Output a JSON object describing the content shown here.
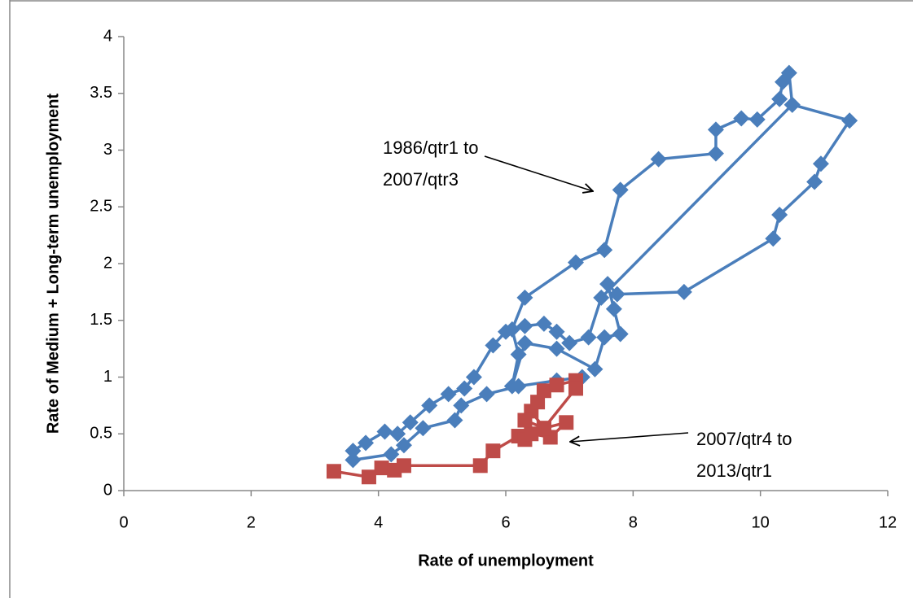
{
  "chart_data": {
    "type": "line",
    "xlabel": "Rate of unemployment",
    "ylabel": "Rate of Medium + Long-term unemployment",
    "xlim": [
      0,
      12
    ],
    "xticks": [
      0,
      2,
      4,
      6,
      8,
      10,
      12
    ],
    "ylim": [
      0,
      4
    ],
    "yticks": [
      0,
      0.5,
      1,
      1.5,
      2,
      2.5,
      3,
      3.5,
      4
    ],
    "grid": false,
    "annotations": [
      {
        "lines": [
          "1986/qtr1 to",
          "2007/qtr3"
        ]
      },
      {
        "lines": [
          "2007/qtr4 to",
          "2013/qtr1"
        ]
      }
    ],
    "series": [
      {
        "color": "#4a7ebb",
        "marker": "diamond",
        "x": [
          10.5,
          10.45,
          10.35,
          10.3,
          9.95,
          9.7,
          9.3,
          9.3,
          8.4,
          7.8,
          7.55,
          7.1,
          6.3,
          6.1,
          6.2,
          6.1,
          6.3,
          6.8,
          7.4,
          7.55,
          7.8,
          7.7,
          7.6,
          7.75,
          8.8,
          10.2,
          10.3,
          10.85,
          10.95,
          11.4,
          10.5,
          7.5,
          7.3,
          7.0,
          6.8,
          6.6,
          6.3,
          6.0,
          5.8,
          5.5,
          5.35,
          5.1,
          4.8,
          4.5,
          4.3,
          4.1,
          3.8,
          3.6,
          3.6,
          4.2,
          4.4,
          4.7,
          5.2,
          5.3,
          5.7,
          6.2,
          6.8,
          7.2
        ],
        "y": [
          3.4,
          3.68,
          3.6,
          3.45,
          3.27,
          3.28,
          3.18,
          2.97,
          2.92,
          2.65,
          2.12,
          2.01,
          1.7,
          1.42,
          1.2,
          0.92,
          1.3,
          1.25,
          1.07,
          1.35,
          1.38,
          1.6,
          1.82,
          1.73,
          1.75,
          2.22,
          2.43,
          2.72,
          2.88,
          3.26,
          3.4,
          1.7,
          1.35,
          1.3,
          1.4,
          1.47,
          1.45,
          1.4,
          1.28,
          1.0,
          0.9,
          0.85,
          0.75,
          0.6,
          0.5,
          0.52,
          0.42,
          0.35,
          0.27,
          0.32,
          0.4,
          0.55,
          0.62,
          0.75,
          0.85,
          0.92,
          0.97,
          1.0
        ]
      },
      {
        "color": "#be4b48",
        "marker": "square",
        "x": [
          3.3,
          3.85,
          4.05,
          4.25,
          4.4,
          5.6,
          5.8,
          6.2,
          6.3,
          6.4,
          6.7,
          6.95,
          6.6,
          6.4,
          6.5,
          6.6,
          6.8,
          7.1,
          7.1,
          6.6,
          6.3
        ],
        "y": [
          0.17,
          0.12,
          0.2,
          0.18,
          0.22,
          0.22,
          0.35,
          0.48,
          0.45,
          0.5,
          0.47,
          0.6,
          0.55,
          0.7,
          0.78,
          0.88,
          0.93,
          0.97,
          0.9,
          0.55,
          0.62
        ]
      }
    ]
  }
}
